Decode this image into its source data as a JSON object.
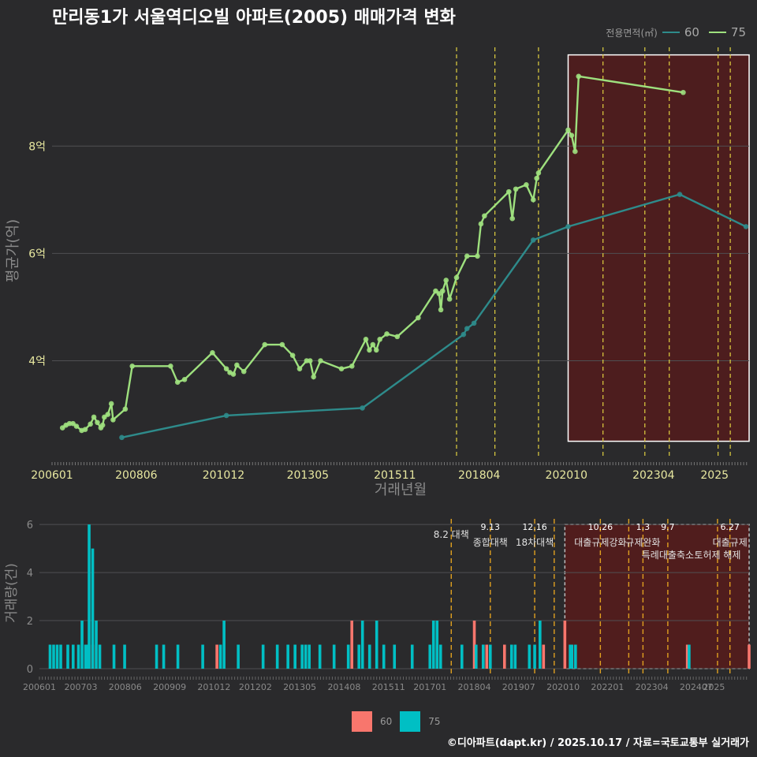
{
  "title": "만리동1가 서울역디오빌 아파트(2005) 매매가격 변화",
  "legend": {
    "title": "전용면적(㎡)",
    "items": [
      {
        "label": "60",
        "color": "#2e8b8b"
      },
      {
        "label": "75",
        "color": "#9ee07e"
      }
    ]
  },
  "bottom_legend": {
    "items": [
      {
        "label": "60",
        "color": "#f8766d"
      },
      {
        "label": "75",
        "color": "#00bfc4"
      }
    ]
  },
  "footer": "©디아파트(dapt.kr) / 2025.10.17 / 자료=국토교통부 실거래가",
  "chart_data": [
    {
      "type": "line",
      "title": "만리동1가 서울역디오빌 아파트(2005) 매매가격 변화",
      "xlabel": "거래년월",
      "ylabel": "평균가(억)",
      "x_ticks": [
        "200601",
        "200806",
        "201012",
        "201305",
        "201511",
        "201804",
        "202010",
        "202304",
        "2025"
      ],
      "y_ticks": [
        "4억",
        "6억",
        "8억"
      ],
      "ylim": [
        2.2,
        9.9
      ],
      "series": [
        {
          "name": "60",
          "points": [
            [
              2008.0,
              2.57
            ],
            [
              2011.0,
              2.98
            ],
            [
              2014.9,
              3.12
            ],
            [
              2017.8,
              4.49
            ],
            [
              2017.9,
              4.6
            ],
            [
              2018.1,
              4.7
            ],
            [
              2019.8,
              6.25
            ],
            [
              2020.8,
              6.5
            ],
            [
              2024.0,
              7.1
            ],
            [
              2025.9,
              6.5
            ]
          ]
        },
        {
          "name": "75",
          "points": [
            [
              2006.3,
              2.75
            ],
            [
              2006.4,
              2.8
            ],
            [
              2006.5,
              2.83
            ],
            [
              2006.6,
              2.83
            ],
            [
              2006.7,
              2.78
            ],
            [
              2006.85,
              2.7
            ],
            [
              2006.95,
              2.72
            ],
            [
              2007.1,
              2.82
            ],
            [
              2007.2,
              2.95
            ],
            [
              2007.3,
              2.85
            ],
            [
              2007.4,
              2.75
            ],
            [
              2007.45,
              2.8
            ],
            [
              2007.5,
              2.95
            ],
            [
              2007.6,
              3.0
            ],
            [
              2007.7,
              3.2
            ],
            [
              2007.75,
              2.9
            ],
            [
              2008.1,
              3.1
            ],
            [
              2008.3,
              3.9
            ],
            [
              2009.4,
              3.9
            ],
            [
              2009.6,
              3.6
            ],
            [
              2009.8,
              3.65
            ],
            [
              2010.6,
              4.15
            ],
            [
              2011.0,
              3.85
            ],
            [
              2011.1,
              3.78
            ],
            [
              2011.2,
              3.75
            ],
            [
              2011.3,
              3.92
            ],
            [
              2011.5,
              3.8
            ],
            [
              2012.1,
              4.3
            ],
            [
              2012.6,
              4.3
            ],
            [
              2012.9,
              4.1
            ],
            [
              2013.1,
              3.85
            ],
            [
              2013.3,
              4.0
            ],
            [
              2013.4,
              4.0
            ],
            [
              2013.5,
              3.7
            ],
            [
              2013.7,
              4.0
            ],
            [
              2014.3,
              3.85
            ],
            [
              2014.6,
              3.9
            ],
            [
              2015.0,
              4.4
            ],
            [
              2015.1,
              4.2
            ],
            [
              2015.2,
              4.3
            ],
            [
              2015.3,
              4.2
            ],
            [
              2015.4,
              4.4
            ],
            [
              2015.6,
              4.5
            ],
            [
              2015.9,
              4.45
            ],
            [
              2016.5,
              4.8
            ],
            [
              2017.0,
              5.3
            ],
            [
              2017.1,
              5.25
            ],
            [
              2017.15,
              4.95
            ],
            [
              2017.2,
              5.3
            ],
            [
              2017.3,
              5.5
            ],
            [
              2017.4,
              5.15
            ],
            [
              2017.6,
              5.55
            ],
            [
              2017.9,
              5.95
            ],
            [
              2018.2,
              5.95
            ],
            [
              2018.3,
              6.55
            ],
            [
              2018.4,
              6.7
            ],
            [
              2019.1,
              7.15
            ],
            [
              2019.2,
              6.65
            ],
            [
              2019.3,
              7.2
            ],
            [
              2019.6,
              7.28
            ],
            [
              2019.8,
              7.0
            ],
            [
              2019.9,
              7.4
            ],
            [
              2019.95,
              7.5
            ],
            [
              2020.8,
              8.3
            ],
            [
              2020.9,
              8.2
            ],
            [
              2021.0,
              7.9
            ],
            [
              2021.1,
              9.3
            ],
            [
              2024.1,
              9.0
            ]
          ]
        }
      ],
      "policy_lines": [
        2017.6,
        2018.7,
        2019.95,
        2021.8,
        2023.0,
        2023.7,
        2025.1,
        2025.45
      ],
      "highlight_range": [
        2020.8,
        2025.99
      ]
    },
    {
      "type": "bar",
      "ylabel": "거래량(건)",
      "x_ticks": [
        "200601",
        "200703",
        "200806",
        "200909",
        "201012",
        "201202",
        "201305",
        "201408",
        "201511",
        "201701",
        "201804",
        "201907",
        "202010",
        "202201",
        "202304",
        "202407",
        "2025"
      ],
      "y_ticks": [
        "0",
        "2",
        "4",
        "6"
      ],
      "ylim": [
        0,
        6.3
      ],
      "series": [
        {
          "name": "60",
          "bars": [
            [
              2007.5,
              1
            ],
            [
              2011.0,
              1
            ],
            [
              2014.8,
              2
            ],
            [
              2017.2,
              1
            ],
            [
              2018.25,
              2
            ],
            [
              2018.5,
              1
            ],
            [
              2018.6,
              1
            ],
            [
              2019.1,
              1
            ],
            [
              2020.2,
              1
            ],
            [
              2020.8,
              2
            ],
            [
              2024.25,
              1
            ],
            [
              2025.99,
              1
            ]
          ]
        },
        {
          "name": "75",
          "bars": [
            [
              2006.3,
              1
            ],
            [
              2006.4,
              1
            ],
            [
              2006.5,
              1
            ],
            [
              2006.6,
              1
            ],
            [
              2006.8,
              1
            ],
            [
              2006.95,
              1
            ],
            [
              2007.1,
              1
            ],
            [
              2007.2,
              2
            ],
            [
              2007.3,
              1
            ],
            [
              2007.35,
              1
            ],
            [
              2007.4,
              6
            ],
            [
              2007.5,
              5
            ],
            [
              2007.6,
              2
            ],
            [
              2007.7,
              1
            ],
            [
              2008.1,
              1
            ],
            [
              2008.4,
              1
            ],
            [
              2009.3,
              1
            ],
            [
              2009.5,
              1
            ],
            [
              2009.9,
              1
            ],
            [
              2010.6,
              1
            ],
            [
              2011.1,
              1
            ],
            [
              2011.2,
              2
            ],
            [
              2011.6,
              1
            ],
            [
              2012.3,
              1
            ],
            [
              2012.7,
              1
            ],
            [
              2013.0,
              1
            ],
            [
              2013.2,
              1
            ],
            [
              2013.4,
              1
            ],
            [
              2013.5,
              1
            ],
            [
              2013.6,
              1
            ],
            [
              2013.9,
              1
            ],
            [
              2014.3,
              1
            ],
            [
              2014.7,
              1
            ],
            [
              2015.0,
              1
            ],
            [
              2015.1,
              2
            ],
            [
              2015.3,
              1
            ],
            [
              2015.5,
              2
            ],
            [
              2015.7,
              1
            ],
            [
              2016.0,
              1
            ],
            [
              2016.5,
              1
            ],
            [
              2017.0,
              1
            ],
            [
              2017.1,
              2
            ],
            [
              2017.2,
              2
            ],
            [
              2017.3,
              1
            ],
            [
              2017.9,
              1
            ],
            [
              2018.3,
              1
            ],
            [
              2018.5,
              1
            ],
            [
              2018.7,
              1
            ],
            [
              2019.3,
              1
            ],
            [
              2019.4,
              1
            ],
            [
              2019.8,
              1
            ],
            [
              2019.95,
              1
            ],
            [
              2020.1,
              2
            ],
            [
              2020.95,
              1
            ],
            [
              2021.0,
              1
            ],
            [
              2021.1,
              1
            ],
            [
              2024.3,
              1
            ]
          ]
        }
      ],
      "policy_lines": [
        2017.6,
        2018.7,
        2019.95,
        2020.5,
        2021.8,
        2022.6,
        2023.0,
        2023.7,
        2025.1,
        2025.45
      ],
      "highlight_range": [
        2020.8,
        2025.99
      ],
      "annotations": [
        {
          "x": 2017.6,
          "date": "",
          "label": "8.2 대책"
        },
        {
          "x": 2018.7,
          "date": "9.13",
          "label": "종합대책"
        },
        {
          "x": 2019.95,
          "date": "12.16",
          "label": "18차대책"
        },
        {
          "x": 2021.8,
          "date": "10.26",
          "label": "대출규제강화"
        },
        {
          "x": 2023.0,
          "date": "1.3",
          "label": "규제완화"
        },
        {
          "x": 2023.7,
          "date": "9.7",
          "label": "특례대출축소"
        },
        {
          "x": 2025.1,
          "date": "",
          "label": "토허제 해제"
        },
        {
          "x": 2025.45,
          "date": "6.27",
          "label": "대출규제"
        }
      ]
    }
  ]
}
